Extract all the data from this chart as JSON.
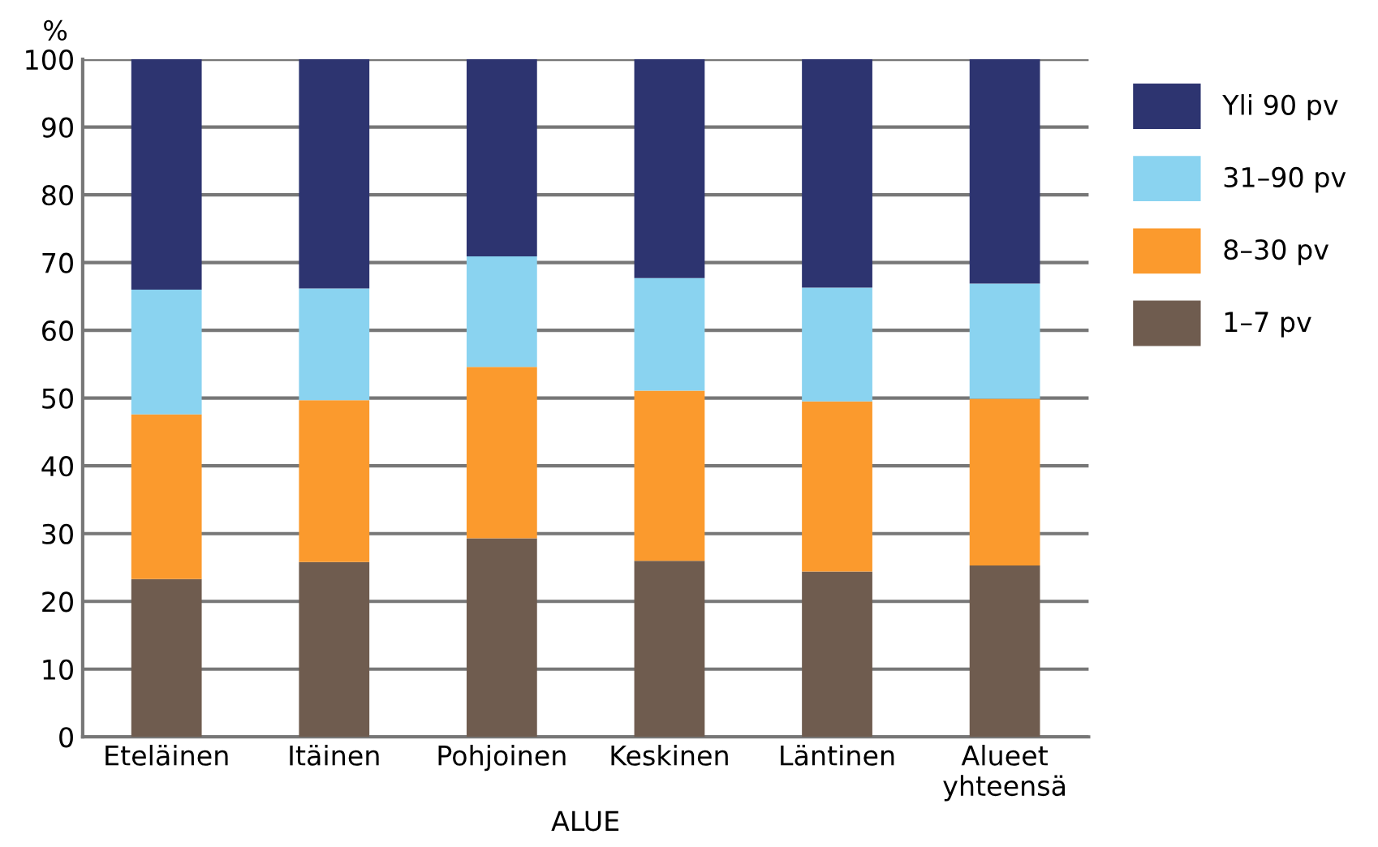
{
  "chart_data": {
    "type": "bar",
    "stacked": true,
    "xlabel": "ALUE",
    "ylabel": "%",
    "categories": [
      "Eteläinen",
      "Itäinen",
      "Pohjoinen",
      "Keskinen",
      "Läntinen",
      "Alueet\nyhteensä"
    ],
    "series": [
      {
        "name": "1–7 pv",
        "color": "#6f5c4f",
        "values": [
          23.3,
          25.8,
          29.3,
          26.0,
          24.4,
          25.3
        ]
      },
      {
        "name": "8–30 pv",
        "color": "#fb9a2d",
        "values": [
          24.3,
          23.9,
          25.3,
          25.1,
          25.1,
          24.6
        ]
      },
      {
        "name": "31–90 pv",
        "color": "#8ad3f0",
        "values": [
          18.4,
          16.5,
          16.3,
          16.6,
          16.8,
          17.0
        ]
      },
      {
        "name": "Yli 90 pv",
        "color": "#2d3470",
        "values": [
          34.0,
          33.8,
          29.1,
          32.3,
          33.7,
          33.1
        ]
      }
    ],
    "ylim": [
      0,
      100
    ],
    "yticks": [
      0,
      10,
      20,
      30,
      40,
      50,
      60,
      70,
      80,
      90,
      100
    ],
    "grid": "y",
    "legend": "right"
  }
}
